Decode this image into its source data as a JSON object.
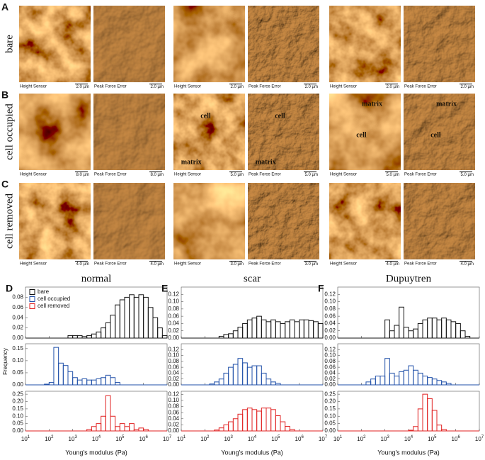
{
  "images": {
    "rows": [
      {
        "letter": "A",
        "label": "bare",
        "panels": [
          {
            "left_caption": "Height Sensor",
            "left_scale": "2.0 µm",
            "right_caption": "Peak Force Error",
            "right_scale": "2.0 µm",
            "left_annotations": [],
            "right_annotations": []
          },
          {
            "left_caption": "Height Sensor",
            "left_scale": "2.0 µm",
            "right_caption": "Peak Force Error",
            "right_scale": "2.0 µm",
            "left_annotations": [],
            "right_annotations": []
          },
          {
            "left_caption": "Height Sensor",
            "left_scale": "2.0 µm",
            "right_caption": "Peak Force Error",
            "right_scale": "2.0 µm",
            "left_annotations": [],
            "right_annotations": []
          }
        ]
      },
      {
        "letter": "B",
        "label": "cell occupied",
        "panels": [
          {
            "left_caption": "Height Sensor",
            "left_scale": "8.0 µm",
            "right_caption": "Peak Force Error",
            "right_scale": "8.0 µm",
            "left_annotations": [],
            "right_annotations": []
          },
          {
            "left_caption": "Height Sensor",
            "left_scale": "5.0 µm",
            "right_caption": "Peak Force Error",
            "right_scale": "5.0 µm",
            "left_annotations": [
              "cell",
              "matrix"
            ],
            "right_annotations": [
              "cell",
              "matrix"
            ]
          },
          {
            "left_caption": "Height Sensor",
            "left_scale": "5.0 µm",
            "right_caption": "Peak Force Error",
            "right_scale": "5.0 µm",
            "left_annotations": [
              "matrix",
              "cell"
            ],
            "right_annotations": [
              "matrix",
              "cell"
            ]
          }
        ]
      },
      {
        "letter": "C",
        "label": "cell removed",
        "panels": [
          {
            "left_caption": "Height Sensor",
            "left_scale": "4.0 µm",
            "right_caption": "Peak Force Error",
            "right_scale": "4.0 µm",
            "left_annotations": [],
            "right_annotations": []
          },
          {
            "left_caption": "Height Sensor",
            "left_scale": "3.0 µm",
            "right_caption": "Peak Force Error",
            "right_scale": "3.0 µm",
            "left_annotations": [],
            "right_annotations": []
          },
          {
            "left_caption": "Height Sensor",
            "left_scale": "4.0 µm",
            "right_caption": "Peak Force Error",
            "right_scale": "4.0 µm",
            "left_annotations": [],
            "right_annotations": []
          }
        ]
      }
    ]
  },
  "y_label": "Frequency",
  "chart_data": [
    {
      "type": "histogram",
      "letter": "D",
      "title": "normal",
      "x_label": "Young's modulus (Pa)",
      "log_x": true,
      "legend": "upper left",
      "xlim": [
        10,
        10000000
      ],
      "xticks": [
        {
          "value": 10,
          "label": "10^1"
        },
        {
          "value": 100,
          "label": "10^2"
        },
        {
          "value": 1000,
          "label": "10^3"
        },
        {
          "value": 10000,
          "label": "10^4"
        },
        {
          "value": 100000,
          "label": "10^5"
        },
        {
          "value": 1000000,
          "label": "10^6"
        },
        {
          "value": 10000000,
          "label": "10^7"
        }
      ],
      "bins": [
        39.8,
        63.1,
        100,
        158,
        251,
        398,
        631,
        1000,
        1585,
        2512,
        3981,
        6310,
        10000,
        15849,
        25119,
        39811,
        63096,
        100000,
        158489,
        251189,
        398107,
        630957,
        1000000,
        1584893,
        2511886,
        3981072,
        6309573,
        10000000
      ],
      "series": [
        {
          "name": "bare",
          "color": "#111111",
          "ylim": [
            0,
            0.1
          ],
          "yticks": [
            {
              "value": 0,
              "label": "0.00"
            },
            {
              "value": 0.02,
              "label": "0.02"
            },
            {
              "value": 0.04,
              "label": "0.04"
            },
            {
              "value": 0.06,
              "label": "0.06"
            },
            {
              "value": 0.08,
              "label": "0.08"
            }
          ],
          "values": [
            0,
            0,
            0,
            0,
            0,
            0,
            0.005,
            0.005,
            0.005,
            0.003,
            0.005,
            0.008,
            0.012,
            0.02,
            0.03,
            0.045,
            0.065,
            0.075,
            0.08,
            0.085,
            0.08,
            0.085,
            0.08,
            0.06,
            0.04,
            0.02,
            0.005
          ]
        },
        {
          "name": "cell occupied",
          "color": "#1f4fa8",
          "ylim": [
            0,
            0.17
          ],
          "yticks": [
            {
              "value": 0,
              "label": "0.00"
            },
            {
              "value": 0.05,
              "label": "0.05"
            },
            {
              "value": 0.1,
              "label": "0.10"
            },
            {
              "value": 0.15,
              "label": "0.15"
            }
          ],
          "values": [
            0,
            0.003,
            0.01,
            0.155,
            0.09,
            0.08,
            0.055,
            0.03,
            0.02,
            0.025,
            0.02,
            0.02,
            0.025,
            0.03,
            0.04,
            0.03,
            0.01,
            0,
            0,
            0,
            0,
            0,
            0,
            0,
            0,
            0,
            0
          ]
        },
        {
          "name": "cell removed",
          "color": "#e02020",
          "ylim": [
            0,
            0.27
          ],
          "yticks": [
            {
              "value": 0,
              "label": "0.00"
            },
            {
              "value": 0.05,
              "label": "0.05"
            },
            {
              "value": 0.1,
              "label": "0.10"
            },
            {
              "value": 0.15,
              "label": "0.15"
            },
            {
              "value": 0.2,
              "label": "0.20"
            },
            {
              "value": 0.25,
              "label": "0.25"
            }
          ],
          "values": [
            0,
            0,
            0,
            0,
            0,
            0,
            0,
            0,
            0,
            0,
            0.01,
            0.03,
            0.05,
            0.1,
            0.24,
            0.1,
            0.03,
            0.05,
            0.03,
            0.05,
            0.01,
            0.02,
            0.01,
            0,
            0,
            0,
            0
          ]
        }
      ]
    },
    {
      "type": "histogram",
      "letter": "E",
      "title": "scar",
      "x_label": "Young's modulus (Pa)",
      "log_x": true,
      "xlim": [
        10,
        10000000
      ],
      "xticks": [
        {
          "value": 10,
          "label": "10^1"
        },
        {
          "value": 100,
          "label": "10^2"
        },
        {
          "value": 1000,
          "label": "10^3"
        },
        {
          "value": 10000,
          "label": "10^4"
        },
        {
          "value": 100000,
          "label": "10^5"
        },
        {
          "value": 1000000,
          "label": "10^6"
        },
        {
          "value": 10000000,
          "label": "10^7"
        }
      ],
      "bins": [
        39.8,
        63.1,
        100,
        158,
        251,
        398,
        631,
        1000,
        1585,
        2512,
        3981,
        6310,
        10000,
        15849,
        25119,
        39811,
        63096,
        100000,
        158489,
        251189,
        398107,
        630957,
        1000000,
        1584893,
        2511886,
        3981072,
        6309573,
        10000000
      ],
      "series": [
        {
          "color": "#111111",
          "ylim": [
            0,
            0.14
          ],
          "yticks": [
            {
              "value": 0,
              "label": "0.00"
            },
            {
              "value": 0.02,
              "label": "0.02"
            },
            {
              "value": 0.04,
              "label": "0.04"
            },
            {
              "value": 0.06,
              "label": "0.06"
            },
            {
              "value": 0.08,
              "label": "0.08"
            },
            {
              "value": 0.1,
              "label": "0.10"
            },
            {
              "value": 0.12,
              "label": "0.12"
            }
          ],
          "values": [
            0,
            0,
            0,
            0,
            0,
            0.005,
            0.01,
            0.012,
            0.02,
            0.03,
            0.04,
            0.05,
            0.055,
            0.06,
            0.05,
            0.045,
            0.05,
            0.045,
            0.04,
            0.045,
            0.05,
            0.045,
            0.05,
            0.05,
            0.048,
            0.045,
            0.04
          ]
        },
        {
          "color": "#1f4fa8",
          "ylim": [
            0,
            0.14
          ],
          "yticks": [
            {
              "value": 0,
              "label": "0.00"
            },
            {
              "value": 0.02,
              "label": "0.02"
            },
            {
              "value": 0.04,
              "label": "0.04"
            },
            {
              "value": 0.06,
              "label": "0.06"
            },
            {
              "value": 0.08,
              "label": "0.08"
            },
            {
              "value": 0.1,
              "label": "0.10"
            },
            {
              "value": 0.12,
              "label": "0.12"
            }
          ],
          "values": [
            0,
            0,
            0,
            0.003,
            0.01,
            0.02,
            0.04,
            0.06,
            0.07,
            0.09,
            0.075,
            0.06,
            0.065,
            0.065,
            0.04,
            0.02,
            0.01,
            0.005,
            0,
            0,
            0,
            0,
            0,
            0,
            0,
            0,
            0
          ]
        },
        {
          "color": "#e02020",
          "ylim": [
            0,
            0.13
          ],
          "yticks": [
            {
              "value": 0,
              "label": "0.00"
            },
            {
              "value": 0.02,
              "label": "0.02"
            },
            {
              "value": 0.04,
              "label": "0.04"
            },
            {
              "value": 0.06,
              "label": "0.06"
            },
            {
              "value": 0.08,
              "label": "0.08"
            },
            {
              "value": 0.1,
              "label": "0.10"
            },
            {
              "value": 0.12,
              "label": "0.12"
            }
          ],
          "values": [
            0,
            0,
            0,
            0,
            0.003,
            0.01,
            0.02,
            0.03,
            0.04,
            0.055,
            0.07,
            0.075,
            0.07,
            0.065,
            0.075,
            0.075,
            0.07,
            0.05,
            0.03,
            0.015,
            0.005,
            0,
            0,
            0,
            0,
            0,
            0
          ]
        }
      ]
    },
    {
      "type": "histogram",
      "letter": "F",
      "title": "Dupuytren",
      "x_label": "Young's modulus (Pa)",
      "log_x": true,
      "xlim": [
        10,
        10000000
      ],
      "xticks": [
        {
          "value": 10,
          "label": "10^1"
        },
        {
          "value": 100,
          "label": "10^2"
        },
        {
          "value": 1000,
          "label": "10^3"
        },
        {
          "value": 10000,
          "label": "10^4"
        },
        {
          "value": 100000,
          "label": "10^5"
        },
        {
          "value": 1000000,
          "label": "10^6"
        },
        {
          "value": 10000000,
          "label": "10^7"
        }
      ],
      "bins": [
        39.8,
        63.1,
        100,
        158,
        251,
        398,
        631,
        1000,
        1585,
        2512,
        3981,
        6310,
        10000,
        15849,
        25119,
        39811,
        63096,
        100000,
        158489,
        251189,
        398107,
        630957,
        1000000,
        1584893,
        2511886,
        3981072,
        6309573,
        10000000
      ],
      "series": [
        {
          "color": "#111111",
          "ylim": [
            0,
            0.14
          ],
          "yticks": [
            {
              "value": 0,
              "label": "0.00"
            },
            {
              "value": 0.02,
              "label": "0.02"
            },
            {
              "value": 0.04,
              "label": "0.04"
            },
            {
              "value": 0.06,
              "label": "0.06"
            },
            {
              "value": 0.08,
              "label": "0.08"
            },
            {
              "value": 0.1,
              "label": "0.10"
            },
            {
              "value": 0.12,
              "label": "0.12"
            }
          ],
          "values": [
            0,
            0,
            0,
            0,
            0,
            0,
            0,
            0.05,
            0.02,
            0.035,
            0.085,
            0.03,
            0.02,
            0.025,
            0.04,
            0.05,
            0.055,
            0.055,
            0.05,
            0.055,
            0.05,
            0.045,
            0.04,
            0.02,
            0.005,
            0,
            0
          ]
        },
        {
          "color": "#1f4fa8",
          "ylim": [
            0,
            0.14
          ],
          "yticks": [
            {
              "value": 0,
              "label": "0.00"
            },
            {
              "value": 0.02,
              "label": "0.02"
            },
            {
              "value": 0.04,
              "label": "0.04"
            },
            {
              "value": 0.06,
              "label": "0.06"
            },
            {
              "value": 0.08,
              "label": "0.08"
            },
            {
              "value": 0.1,
              "label": "0.10"
            },
            {
              "value": 0.12,
              "label": "0.12"
            }
          ],
          "values": [
            0,
            0,
            0,
            0.01,
            0.02,
            0.03,
            0.03,
            0.09,
            0.04,
            0.03,
            0.045,
            0.05,
            0.065,
            0.05,
            0.04,
            0.03,
            0.025,
            0.02,
            0.015,
            0.01,
            0.005,
            0,
            0,
            0,
            0,
            0,
            0
          ]
        },
        {
          "color": "#e02020",
          "ylim": [
            0,
            0.27
          ],
          "yticks": [
            {
              "value": 0,
              "label": "0.00"
            },
            {
              "value": 0.05,
              "label": "0.05"
            },
            {
              "value": 0.1,
              "label": "0.10"
            },
            {
              "value": 0.15,
              "label": "0.15"
            },
            {
              "value": 0.2,
              "label": "0.20"
            },
            {
              "value": 0.25,
              "label": "0.25"
            }
          ],
          "values": [
            0,
            0,
            0,
            0,
            0,
            0,
            0,
            0,
            0,
            0,
            0,
            0,
            0.005,
            0.03,
            0.15,
            0.25,
            0.22,
            0.14,
            0.04,
            0.01,
            0,
            0,
            0,
            0,
            0,
            0,
            0
          ]
        }
      ]
    }
  ]
}
